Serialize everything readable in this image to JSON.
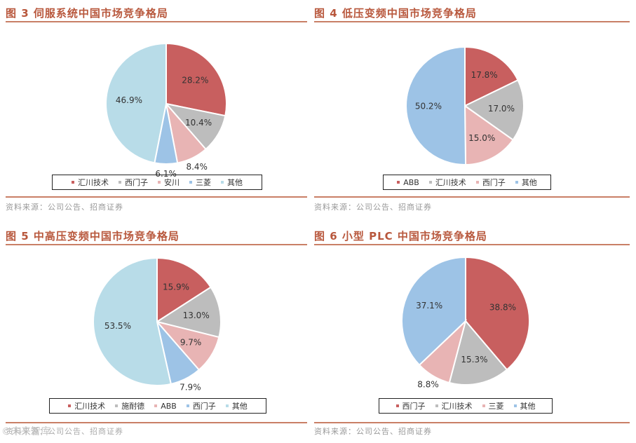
{
  "source_text": "资料来源：公司公告、招商证券",
  "watermark": "©未来智库",
  "panels": [
    {
      "title": "图 3  伺服系统中国市场竞争格局",
      "source": "资料来源：公司公告、招商证券",
      "legend": [
        "汇川技术",
        "西门子",
        "安川",
        "三菱",
        "其他"
      ]
    },
    {
      "title": "图 4  低压变频中国市场竞争格局",
      "source": "资料来源：公司公告、招商证券",
      "legend": [
        "ABB",
        "汇川技术",
        "西门子",
        "其他"
      ]
    },
    {
      "title": "图 5  中高压变频中国市场竞争格局",
      "source": "资料来源：公司公告、招商证券",
      "legend": [
        "汇川技术",
        "施耐德",
        "ABB",
        "西门子",
        "其他"
      ]
    },
    {
      "title": "图 6  小型 PLC 中国市场竞争格局",
      "source": "资料来源：公司公告、招商证券",
      "legend": [
        "西门子",
        "汇川技术",
        "三菱",
        "其他"
      ]
    }
  ],
  "chart_data": [
    {
      "type": "pie",
      "title": "图 3  伺服系统中国市场竞争格局",
      "categories": [
        "汇川技术",
        "西门子",
        "安川",
        "三菱",
        "其他"
      ],
      "values": [
        28.2,
        10.4,
        8.4,
        6.1,
        46.9
      ],
      "labels": [
        "28.2%",
        "10.4%",
        "8.4%",
        "6.1%",
        "46.9%"
      ],
      "colors": [
        "#c85f5f",
        "#bdbdbd",
        "#e8b4b4",
        "#9dc3e6",
        "#b8dce8"
      ],
      "legend_position": "bottom"
    },
    {
      "type": "pie",
      "title": "图 4  低压变频中国市场竞争格局",
      "categories": [
        "ABB",
        "汇川技术",
        "西门子",
        "其他"
      ],
      "values": [
        17.8,
        17.0,
        15.0,
        50.2
      ],
      "labels": [
        "17.8%",
        "17.0%",
        "15.0%",
        "50.2%"
      ],
      "colors": [
        "#c85f5f",
        "#bdbdbd",
        "#e8b4b4",
        "#9dc3e6"
      ],
      "legend_position": "bottom"
    },
    {
      "type": "pie",
      "title": "图 5  中高压变频中国市场竞争格局",
      "categories": [
        "汇川技术",
        "施耐德",
        "ABB",
        "西门子",
        "其他"
      ],
      "values": [
        15.9,
        13.0,
        9.7,
        7.9,
        53.5
      ],
      "labels": [
        "15.9%",
        "13.0%",
        "9.7%",
        "7.9%",
        "53.5%"
      ],
      "colors": [
        "#c85f5f",
        "#bdbdbd",
        "#e8b4b4",
        "#9dc3e6",
        "#b8dce8"
      ],
      "legend_position": "bottom"
    },
    {
      "type": "pie",
      "title": "图 6  小型 PLC 中国市场竞争格局",
      "categories": [
        "西门子",
        "汇川技术",
        "三菱",
        "其他"
      ],
      "values": [
        38.8,
        15.3,
        8.8,
        37.1
      ],
      "labels": [
        "38.8%",
        "15.3%",
        "8.8%",
        "37.1%"
      ],
      "colors": [
        "#c85f5f",
        "#bdbdbd",
        "#e8b4b4",
        "#9dc3e6"
      ],
      "legend_position": "bottom"
    }
  ]
}
